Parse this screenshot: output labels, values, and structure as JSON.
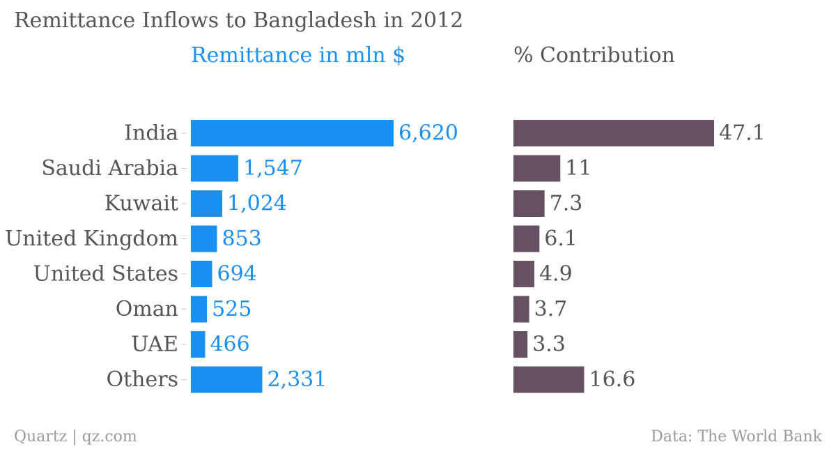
{
  "chart_data": {
    "type": "bar",
    "title": "Remittance Inflows to Bangladesh in 2012",
    "categories": [
      "India",
      "Saudi Arabia",
      "Kuwait",
      "United Kingdom",
      "United States",
      "Oman",
      "UAE",
      "Others"
    ],
    "series": [
      {
        "name": "Remittance in mln $",
        "values": [
          6620,
          1547,
          1024,
          853,
          694,
          525,
          466,
          2331
        ],
        "labels": [
          "6,620",
          "1,547",
          "1,024",
          "853",
          "694",
          "525",
          "466",
          "2,331"
        ],
        "color": "#1a8ff2"
      },
      {
        "name": "% Contribution",
        "values": [
          47.1,
          11,
          7.3,
          6.1,
          4.9,
          3.7,
          3.3,
          16.6
        ],
        "labels": [
          "47.1",
          "11",
          "7.3",
          "6.1",
          "4.9",
          "3.7",
          "3.3",
          "16.6"
        ],
        "color": "#665163"
      }
    ],
    "orientation": "horizontal",
    "grid": false
  },
  "footer": {
    "source_left": "Quartz | qz.com",
    "source_right": "Data: The World Bank"
  },
  "colors": {
    "category_label": "#555555",
    "title": "#555555",
    "tick": "#cccccc"
  }
}
